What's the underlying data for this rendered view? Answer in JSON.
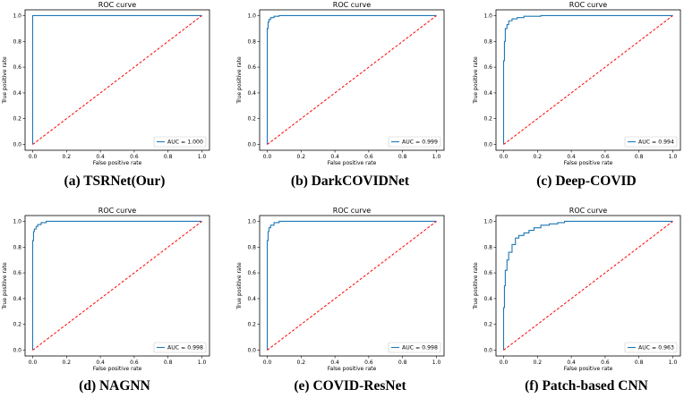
{
  "colors": {
    "roc": "#1f77b4",
    "diagonal": "#ff0000",
    "axes": "#000000"
  },
  "chart_data": [
    {
      "type": "line",
      "title": "ROC curve",
      "xlabel": "False positive rate",
      "ylabel": "True positive rate",
      "xlim": [
        0,
        1
      ],
      "ylim": [
        0,
        1
      ],
      "xticks": [
        "0.0",
        "0.2",
        "0.4",
        "0.6",
        "0.8",
        "1.0"
      ],
      "yticks": [
        "0.0",
        "0.2",
        "0.4",
        "0.6",
        "0.8",
        "1.0"
      ],
      "legend": "AUC = 1.000",
      "legend_loc": "lower-right",
      "caption": "(a) TSRNet(Our)",
      "series": [
        {
          "name": "ROC",
          "style": "solid",
          "x": [
            0,
            0,
            1
          ],
          "y": [
            0,
            1,
            1
          ]
        },
        {
          "name": "chance",
          "style": "dashed",
          "x": [
            0,
            1
          ],
          "y": [
            0,
            1
          ]
        }
      ]
    },
    {
      "type": "line",
      "title": "ROC curve",
      "xlabel": "False positive rate",
      "ylabel": "True positive rate",
      "xlim": [
        0,
        1
      ],
      "ylim": [
        0,
        1
      ],
      "xticks": [
        "0.0",
        "0.2",
        "0.4",
        "0.6",
        "0.8",
        "1.0"
      ],
      "yticks": [
        "0.0",
        "0.2",
        "0.4",
        "0.6",
        "0.8",
        "1.0"
      ],
      "legend": "AUC = 0.999",
      "legend_loc": "lower-right",
      "caption": "(b) DarkCOVIDNet",
      "series": [
        {
          "name": "ROC",
          "style": "solid",
          "x": [
            0,
            0,
            0.005,
            0.005,
            0.01,
            0.01,
            0.02,
            0.02,
            0.04,
            0.04,
            0.07,
            0.07,
            1
          ],
          "y": [
            0,
            0.9,
            0.9,
            0.95,
            0.95,
            0.97,
            0.97,
            0.985,
            0.985,
            0.995,
            0.995,
            1,
            1
          ]
        },
        {
          "name": "chance",
          "style": "dashed",
          "x": [
            0,
            1
          ],
          "y": [
            0,
            1
          ]
        }
      ]
    },
    {
      "type": "line",
      "title": "ROC curve",
      "xlabel": "False positive rate",
      "ylabel": "True positive rate",
      "xlim": [
        0,
        1
      ],
      "ylim": [
        0,
        1
      ],
      "xticks": [
        "0.0",
        "0.2",
        "0.4",
        "0.6",
        "0.8",
        "1.0"
      ],
      "yticks": [
        "0.0",
        "0.2",
        "0.4",
        "0.6",
        "0.8",
        "1.0"
      ],
      "legend": "AUC = 0.994",
      "legend_loc": "lower-right",
      "caption": "(c) Deep-COVID",
      "series": [
        {
          "name": "ROC",
          "style": "solid",
          "x": [
            0,
            0,
            0.005,
            0.005,
            0.01,
            0.01,
            0.02,
            0.02,
            0.03,
            0.03,
            0.05,
            0.05,
            0.08,
            0.08,
            0.12,
            0.12,
            0.22,
            0.22,
            1
          ],
          "y": [
            0,
            0.65,
            0.65,
            0.8,
            0.8,
            0.9,
            0.9,
            0.93,
            0.93,
            0.96,
            0.96,
            0.975,
            0.975,
            0.985,
            0.985,
            0.995,
            0.995,
            1,
            1
          ]
        },
        {
          "name": "chance",
          "style": "dashed",
          "x": [
            0,
            1
          ],
          "y": [
            0,
            1
          ]
        }
      ]
    },
    {
      "type": "line",
      "title": "ROC curve",
      "xlabel": "False positive rate",
      "ylabel": "True positive rate",
      "xlim": [
        0,
        1
      ],
      "ylim": [
        0,
        1
      ],
      "xticks": [
        "0.0",
        "0.2",
        "0.4",
        "0.6",
        "0.8",
        "1.0"
      ],
      "yticks": [
        "0.0",
        "0.2",
        "0.4",
        "0.6",
        "0.8",
        "1.0"
      ],
      "legend": "AUC = 0.998",
      "legend_loc": "lower-right",
      "caption": "(d) NAGNN",
      "series": [
        {
          "name": "ROC",
          "style": "solid",
          "x": [
            0,
            0,
            0.005,
            0.005,
            0.01,
            0.01,
            0.02,
            0.02,
            0.03,
            0.03,
            0.05,
            0.05,
            0.08,
            0.08,
            1
          ],
          "y": [
            0,
            0.85,
            0.85,
            0.92,
            0.92,
            0.94,
            0.94,
            0.96,
            0.96,
            0.975,
            0.975,
            0.99,
            0.99,
            1,
            1
          ]
        },
        {
          "name": "chance",
          "style": "dashed",
          "x": [
            0,
            1
          ],
          "y": [
            0,
            1
          ]
        }
      ]
    },
    {
      "type": "line",
      "title": "ROC curve",
      "xlabel": "False positive rate",
      "ylabel": "True positive rate",
      "xlim": [
        0,
        1
      ],
      "ylim": [
        0,
        1
      ],
      "xticks": [
        "0.0",
        "0.2",
        "0.4",
        "0.6",
        "0.8",
        "1.0"
      ],
      "yticks": [
        "0.0",
        "0.2",
        "0.4",
        "0.6",
        "0.8",
        "1.0"
      ],
      "legend": "AUC = 0.998",
      "legend_loc": "lower-right",
      "caption": "(e) COVID-ResNet",
      "series": [
        {
          "name": "ROC",
          "style": "solid",
          "x": [
            0,
            0,
            0.005,
            0.005,
            0.01,
            0.01,
            0.02,
            0.02,
            0.04,
            0.04,
            0.07,
            0.07,
            1
          ],
          "y": [
            0,
            0.85,
            0.85,
            0.92,
            0.92,
            0.95,
            0.95,
            0.97,
            0.97,
            0.99,
            0.99,
            1,
            1
          ]
        },
        {
          "name": "chance",
          "style": "dashed",
          "x": [
            0,
            1
          ],
          "y": [
            0,
            1
          ]
        }
      ]
    },
    {
      "type": "line",
      "title": "ROC curve",
      "xlabel": "False positive rate",
      "ylabel": "True positive rate",
      "xlim": [
        0,
        1
      ],
      "ylim": [
        0,
        1
      ],
      "xticks": [
        "0.0",
        "0.2",
        "0.4",
        "0.6",
        "0.8",
        "1.0"
      ],
      "yticks": [
        "0.0",
        "0.2",
        "0.4",
        "0.6",
        "0.8",
        "1.0"
      ],
      "legend": "AUC = 0.963",
      "legend_loc": "lower-right",
      "caption": "(f) Patch-based CNN",
      "series": [
        {
          "name": "ROC",
          "style": "solid",
          "x": [
            0,
            0,
            0.005,
            0.005,
            0.01,
            0.01,
            0.02,
            0.02,
            0.03,
            0.03,
            0.05,
            0.05,
            0.07,
            0.07,
            0.09,
            0.09,
            0.12,
            0.12,
            0.15,
            0.15,
            0.18,
            0.18,
            0.22,
            0.22,
            0.27,
            0.27,
            0.32,
            0.32,
            0.36,
            0.36,
            0.95,
            0.95,
            1
          ],
          "y": [
            0,
            0.33,
            0.33,
            0.5,
            0.5,
            0.62,
            0.62,
            0.7,
            0.7,
            0.76,
            0.76,
            0.82,
            0.82,
            0.87,
            0.87,
            0.89,
            0.89,
            0.91,
            0.91,
            0.93,
            0.93,
            0.95,
            0.95,
            0.97,
            0.97,
            0.98,
            0.98,
            0.99,
            0.99,
            1,
            1,
            1,
            1
          ]
        },
        {
          "name": "chance",
          "style": "dashed",
          "x": [
            0,
            1
          ],
          "y": [
            0,
            1
          ]
        }
      ]
    }
  ]
}
